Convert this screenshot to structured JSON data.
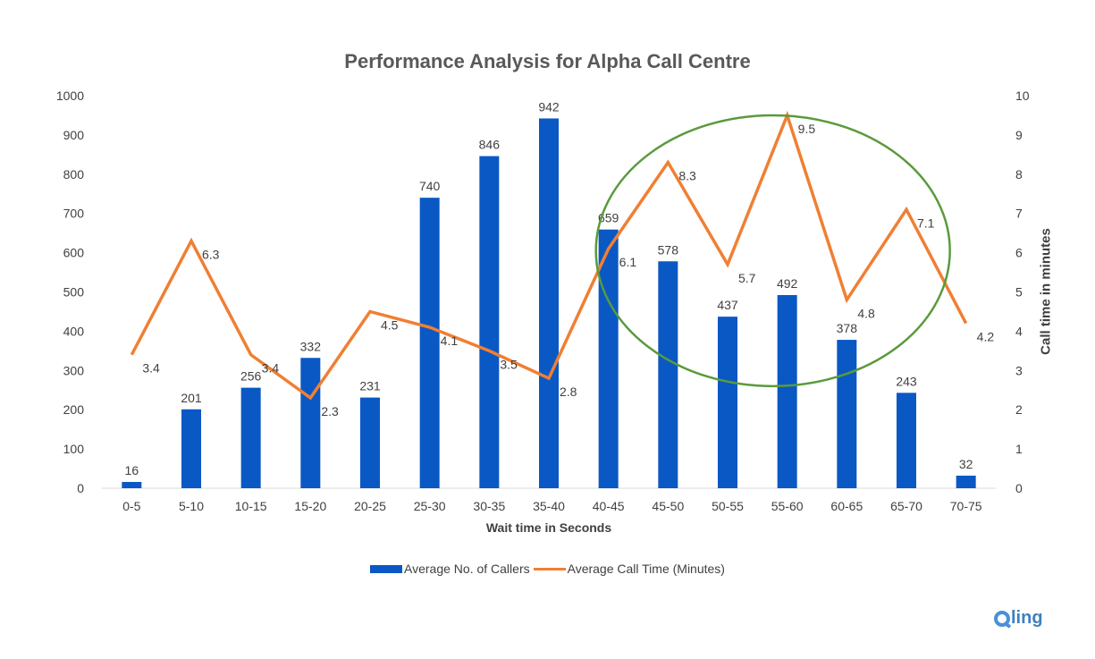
{
  "chart_data": {
    "type": "bar",
    "title": "Performance Analysis for Alpha Call Centre",
    "xlabel": "Wait time in Seconds",
    "ylabel": "",
    "y2label": "Call time in minutes",
    "categories": [
      "0-5",
      "5-10",
      "10-15",
      "15-20",
      "20-25",
      "25-30",
      "30-35",
      "35-40",
      "40-45",
      "45-50",
      "50-55",
      "55-60",
      "60-65",
      "65-70",
      "70-75"
    ],
    "ylim": [
      0,
      1000
    ],
    "y2lim": [
      0,
      10
    ],
    "yticks": [
      0,
      100,
      200,
      300,
      400,
      500,
      600,
      700,
      800,
      900,
      1000
    ],
    "y2ticks": [
      0,
      1,
      2,
      3,
      4,
      5,
      6,
      7,
      8,
      9,
      10
    ],
    "series": [
      {
        "name": "Average No. of Callers",
        "type": "bar",
        "axis": "left",
        "color": "#0a58c4",
        "values": [
          16,
          201,
          256,
          332,
          231,
          740,
          846,
          942,
          659,
          578,
          437,
          492,
          378,
          243,
          32
        ]
      },
      {
        "name": "Average Call Time (Minutes)",
        "type": "line",
        "axis": "right",
        "color": "#f07f33",
        "values": [
          3.4,
          6.3,
          3.4,
          2.3,
          4.5,
          4.1,
          3.5,
          2.8,
          6.1,
          8.3,
          5.7,
          9.5,
          4.8,
          7.1,
          4.2
        ]
      }
    ],
    "annotation": {
      "shape": "ellipse",
      "color": "#5a9a3c",
      "covers": [
        "40-45",
        "70-75"
      ]
    },
    "grid": false,
    "legend_position": "bottom"
  },
  "logo": {
    "text": "ling"
  }
}
